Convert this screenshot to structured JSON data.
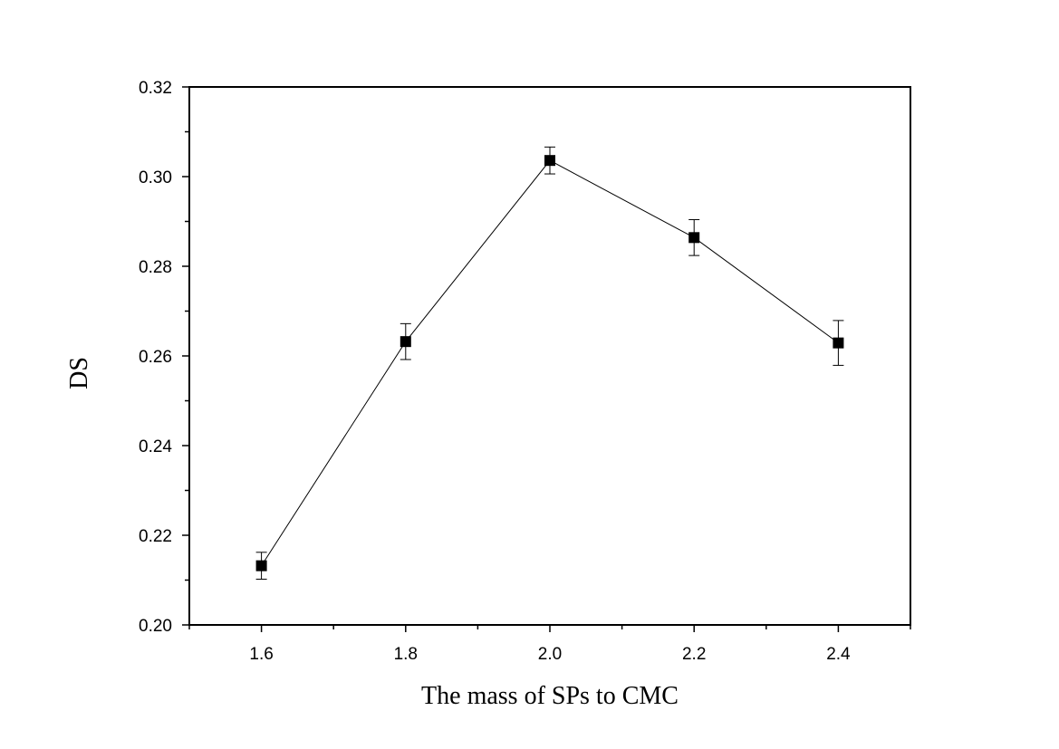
{
  "chart_data": {
    "type": "line",
    "title": "",
    "xlabel": "The mass of SPs to CMC",
    "ylabel": "DS",
    "xlim": [
      1.5,
      2.5
    ],
    "ylim": [
      0.2,
      0.32
    ],
    "x_ticks": [
      1.6,
      1.8,
      2.0,
      2.2,
      2.4
    ],
    "x_tick_labels": [
      "1.6",
      "1.8",
      "2.0",
      "2.2",
      "2.4"
    ],
    "y_ticks": [
      0.2,
      0.22,
      0.24,
      0.26,
      0.28,
      0.3,
      0.32
    ],
    "y_tick_labels": [
      "0.20",
      "0.22",
      "0.24",
      "0.26",
      "0.28",
      "0.30",
      "0.32"
    ],
    "grid": false,
    "legend": "none",
    "marker": "square",
    "series": [
      {
        "x": [
          1.6,
          1.8,
          2.0,
          2.2,
          2.4
        ],
        "y": [
          0.2132,
          0.2632,
          0.3036,
          0.2864,
          0.2629
        ],
        "error": [
          0.003,
          0.004,
          0.003,
          0.004,
          0.005
        ],
        "color": "#000000"
      }
    ]
  }
}
